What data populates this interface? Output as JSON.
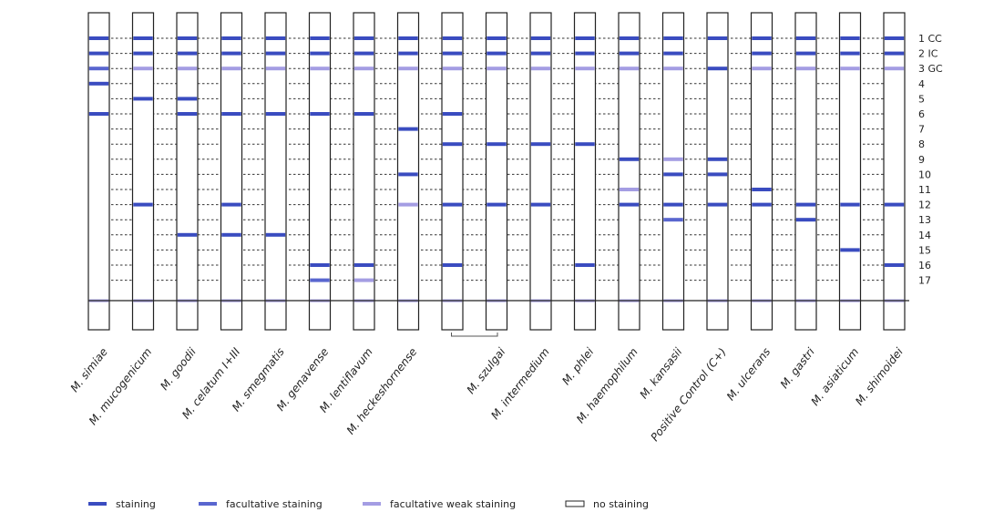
{
  "colors": {
    "staining": "#3a4cc0",
    "facultative": "#5966cf",
    "weak": "#a49de3",
    "baseline": "#b9b4ec",
    "outline": "#222222"
  },
  "bands": [
    {
      "id": 1,
      "label": "1 CC"
    },
    {
      "id": 2,
      "label": "2 IC"
    },
    {
      "id": 3,
      "label": "3 GC"
    },
    {
      "id": 4,
      "label": "4"
    },
    {
      "id": 5,
      "label": "5"
    },
    {
      "id": 6,
      "label": "6"
    },
    {
      "id": 7,
      "label": "7"
    },
    {
      "id": 8,
      "label": "8"
    },
    {
      "id": 9,
      "label": "9"
    },
    {
      "id": 10,
      "label": "10"
    },
    {
      "id": 11,
      "label": "11"
    },
    {
      "id": 12,
      "label": "12"
    },
    {
      "id": 13,
      "label": "13"
    },
    {
      "id": 14,
      "label": "14"
    },
    {
      "id": 15,
      "label": "15"
    },
    {
      "id": 16,
      "label": "16"
    },
    {
      "id": 17,
      "label": "17"
    }
  ],
  "strips": [
    {
      "name": "M. simiae",
      "bands": [
        [
          1,
          "s"
        ],
        [
          2,
          "s"
        ],
        [
          3,
          "f"
        ],
        [
          4,
          "s"
        ],
        [
          6,
          "s"
        ]
      ]
    },
    {
      "name": "M. mucogenicum",
      "bands": [
        [
          1,
          "s"
        ],
        [
          2,
          "s"
        ],
        [
          3,
          "w"
        ],
        [
          5,
          "s"
        ],
        [
          12,
          "s"
        ]
      ]
    },
    {
      "name": "M. goodii",
      "bands": [
        [
          1,
          "s"
        ],
        [
          2,
          "s"
        ],
        [
          3,
          "w"
        ],
        [
          5,
          "s"
        ],
        [
          6,
          "s"
        ],
        [
          14,
          "s"
        ]
      ]
    },
    {
      "name": "M. celatum I+III",
      "bands": [
        [
          1,
          "s"
        ],
        [
          2,
          "s"
        ],
        [
          3,
          "w"
        ],
        [
          6,
          "s"
        ],
        [
          12,
          "s"
        ],
        [
          14,
          "s"
        ]
      ]
    },
    {
      "name": "M. smegmatis",
      "bands": [
        [
          1,
          "s"
        ],
        [
          2,
          "s"
        ],
        [
          3,
          "w"
        ],
        [
          6,
          "s"
        ],
        [
          14,
          "s"
        ]
      ]
    },
    {
      "name": "M. genavense",
      "bands": [
        [
          1,
          "s"
        ],
        [
          2,
          "s"
        ],
        [
          3,
          "w"
        ],
        [
          6,
          "s"
        ],
        [
          16,
          "s"
        ],
        [
          17,
          "f"
        ]
      ]
    },
    {
      "name": "M. lentiflavum",
      "bands": [
        [
          1,
          "s"
        ],
        [
          2,
          "s"
        ],
        [
          3,
          "w"
        ],
        [
          6,
          "s"
        ],
        [
          16,
          "s"
        ],
        [
          17,
          "w"
        ]
      ]
    },
    {
      "name": "M. heckeshornense",
      "bands": [
        [
          1,
          "s"
        ],
        [
          2,
          "s"
        ],
        [
          3,
          "w"
        ],
        [
          7,
          "s"
        ],
        [
          10,
          "s"
        ],
        [
          12,
          "w"
        ]
      ]
    },
    {
      "name": "",
      "bands": [
        [
          1,
          "s"
        ],
        [
          2,
          "s"
        ],
        [
          3,
          "w"
        ],
        [
          6,
          "s"
        ],
        [
          8,
          "s"
        ],
        [
          12,
          "s"
        ],
        [
          16,
          "s"
        ]
      ]
    },
    {
      "name": "M. szulgai",
      "bands": [
        [
          1,
          "s"
        ],
        [
          2,
          "s"
        ],
        [
          3,
          "w"
        ],
        [
          8,
          "s"
        ],
        [
          12,
          "s"
        ]
      ]
    },
    {
      "name": "M. intermedium",
      "bands": [
        [
          1,
          "s"
        ],
        [
          2,
          "s"
        ],
        [
          3,
          "w"
        ],
        [
          8,
          "s"
        ],
        [
          12,
          "s"
        ]
      ]
    },
    {
      "name": "M. phlei",
      "bands": [
        [
          1,
          "s"
        ],
        [
          2,
          "s"
        ],
        [
          3,
          "w"
        ],
        [
          8,
          "s"
        ],
        [
          16,
          "s"
        ]
      ]
    },
    {
      "name": "M. haemophilum",
      "bands": [
        [
          1,
          "s"
        ],
        [
          2,
          "s"
        ],
        [
          3,
          "w"
        ],
        [
          9,
          "s"
        ],
        [
          11,
          "w"
        ],
        [
          12,
          "s"
        ]
      ]
    },
    {
      "name": "M. kansasii",
      "bands": [
        [
          1,
          "s"
        ],
        [
          2,
          "s"
        ],
        [
          3,
          "w"
        ],
        [
          9,
          "w"
        ],
        [
          10,
          "s"
        ],
        [
          12,
          "s"
        ],
        [
          13,
          "f"
        ]
      ]
    },
    {
      "name": "Positive Control (C+)",
      "bands": [
        [
          1,
          "s"
        ],
        [
          3,
          "s"
        ],
        [
          9,
          "s"
        ],
        [
          10,
          "s"
        ],
        [
          12,
          "s"
        ]
      ]
    },
    {
      "name": "M. ulcerans",
      "bands": [
        [
          1,
          "s"
        ],
        [
          2,
          "s"
        ],
        [
          3,
          "w"
        ],
        [
          11,
          "s"
        ],
        [
          12,
          "s"
        ]
      ]
    },
    {
      "name": "M. gastri",
      "bands": [
        [
          1,
          "s"
        ],
        [
          2,
          "s"
        ],
        [
          3,
          "w"
        ],
        [
          12,
          "s"
        ],
        [
          13,
          "s"
        ]
      ]
    },
    {
      "name": "M. asiaticum",
      "bands": [
        [
          1,
          "s"
        ],
        [
          2,
          "s"
        ],
        [
          3,
          "w"
        ],
        [
          12,
          "s"
        ],
        [
          15,
          "s"
        ]
      ]
    },
    {
      "name": "M. shimoidei",
      "bands": [
        [
          1,
          "s"
        ],
        [
          2,
          "s"
        ],
        [
          3,
          "w"
        ],
        [
          12,
          "s"
        ],
        [
          16,
          "s"
        ]
      ]
    }
  ],
  "bracket_strips": [
    8,
    9
  ],
  "legend": [
    {
      "type": "s",
      "label": "staining"
    },
    {
      "type": "f",
      "label": "facultative staining"
    },
    {
      "type": "w",
      "label": "facultative weak staining"
    },
    {
      "type": "n",
      "label": "no staining"
    }
  ]
}
